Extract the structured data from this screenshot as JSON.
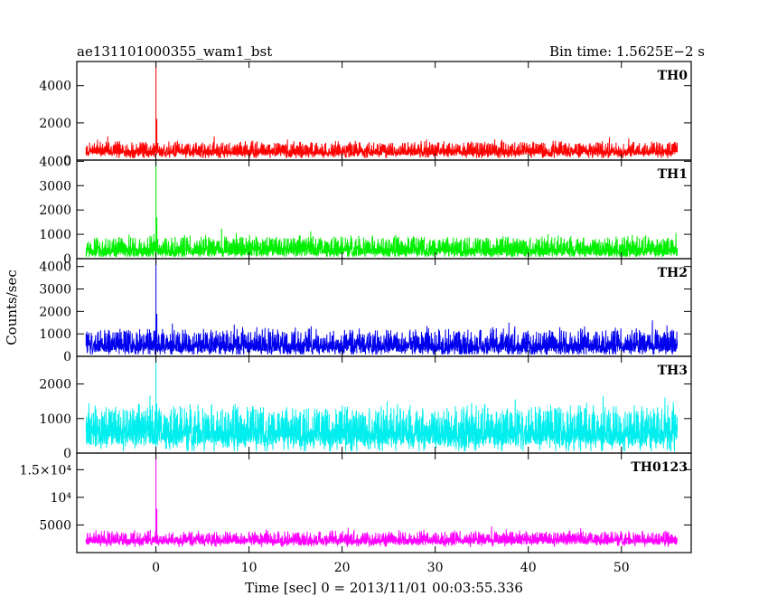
{
  "chart_data": {
    "type": "line",
    "title_left": "ae131101000355_wam1_bst",
    "title_right": "Bin time: 1.5625E−2 s",
    "ylabel": "Counts/sec",
    "xlabel": "Time [sec] 0 = 2013/11/01 00:03:55.336",
    "xlim": [
      -8.5,
      57.5
    ],
    "x_ticks": [
      0,
      10,
      20,
      30,
      40,
      50
    ],
    "x_tick_labels": [
      "0",
      "10",
      "20",
      "30",
      "40",
      "50"
    ],
    "data_range_x": [
      -7.5,
      56
    ],
    "series": [
      {
        "name": "TH0",
        "color": "#ff0000",
        "ylim": [
          0,
          5300
        ],
        "y_ticks": [
          0,
          2000,
          4000
        ],
        "y_tick_labels": [
          "0",
          "2000",
          "4000"
        ],
        "baseline": 550,
        "noise": 650,
        "spike": {
          "x": 0,
          "y": 5300
        }
      },
      {
        "name": "TH1",
        "color": "#00ee00",
        "ylim": [
          0,
          4050
        ],
        "y_ticks": [
          0,
          1000,
          2000,
          3000,
          4000
        ],
        "y_tick_labels": [
          "0",
          "1000",
          "2000",
          "3000",
          "4000"
        ],
        "baseline": 450,
        "noise": 700,
        "spike": {
          "x": 0,
          "y": 4000
        }
      },
      {
        "name": "TH2",
        "color": "#0000ee",
        "ylim": [
          0,
          4350
        ],
        "y_ticks": [
          0,
          1000,
          2000,
          3000,
          4000
        ],
        "y_tick_labels": [
          "0",
          "1000",
          "2000",
          "3000",
          "4000"
        ],
        "baseline": 600,
        "noise": 900,
        "spike": {
          "x": 0,
          "y": 4300
        }
      },
      {
        "name": "TH3",
        "color": "#00eeee",
        "ylim": [
          0,
          2800
        ],
        "y_ticks": [
          0,
          1000,
          2000
        ],
        "y_tick_labels": [
          "0",
          "1000",
          "2000"
        ],
        "baseline": 700,
        "noise": 1000,
        "spike": {
          "x": 0,
          "y": 2800
        }
      },
      {
        "name": "TH0123",
        "color": "#ff00ff",
        "ylim": [
          0,
          18000
        ],
        "y_ticks": [
          5000,
          10000,
          15000
        ],
        "y_tick_labels": [
          "5000",
          "10⁴",
          "1.5×10⁴"
        ],
        "baseline": 2500,
        "noise": 2000,
        "spike": {
          "x": 0,
          "y": 18000
        }
      }
    ]
  }
}
